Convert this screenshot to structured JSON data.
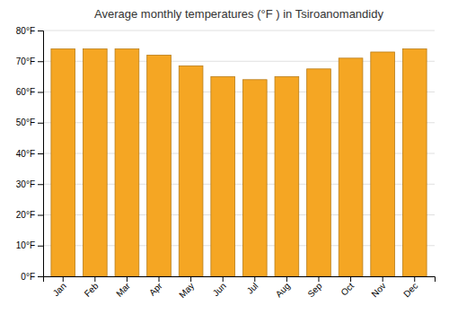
{
  "chart_data": {
    "type": "bar",
    "title": "Average monthly temperatures (°F ) in Tsiroanomandidy",
    "categories": [
      "Jan",
      "Feb",
      "Mar",
      "Apr",
      "May",
      "Jun",
      "Jul",
      "Aug",
      "Sep",
      "Oct",
      "Nov",
      "Dec"
    ],
    "values": [
      74,
      74,
      74,
      72,
      68.5,
      65,
      64,
      65,
      67.5,
      71,
      73,
      74
    ],
    "color": "#F5A623",
    "ylim": [
      0,
      80
    ],
    "yticks": [
      {
        "value": 0,
        "label": "0°F"
      },
      {
        "value": 10,
        "label": "10°F"
      },
      {
        "value": 20,
        "label": "20°F"
      },
      {
        "value": 30,
        "label": "30°F"
      },
      {
        "value": 40,
        "label": "40°F"
      },
      {
        "value": 50,
        "label": "50°F"
      },
      {
        "value": 60,
        "label": "60°F"
      },
      {
        "value": 70,
        "label": "70°F"
      },
      {
        "value": 80,
        "label": "80°F"
      }
    ],
    "grid": true
  }
}
